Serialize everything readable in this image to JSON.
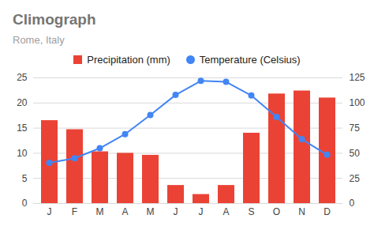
{
  "chart_data": {
    "type": "bar",
    "title": "Climograph",
    "subtitle": "Rome, Italy",
    "categories": [
      "J",
      "F",
      "M",
      "A",
      "M",
      "J",
      "J",
      "A",
      "S",
      "O",
      "N",
      "D"
    ],
    "series": [
      {
        "name": "Precipitation (mm)",
        "type": "bar",
        "axis": "y2",
        "color": "#ea4335",
        "values": [
          82.5,
          73.5,
          51.5,
          50,
          48,
          18,
          9,
          18,
          70,
          109,
          112,
          105
        ]
      },
      {
        "name": "Temperature (Celsius)",
        "type": "line",
        "marker": "circle",
        "color": "#4285f4",
        "values": [
          8.1,
          9,
          11,
          13.8,
          17.6,
          21.6,
          24.4,
          24.2,
          21.5,
          17.2,
          12.8,
          9.7
        ]
      }
    ],
    "ylim": [
      0,
      25
    ],
    "yticks": [
      0,
      5,
      10,
      15,
      20,
      25
    ],
    "y2lim": [
      0,
      125
    ],
    "y2ticks": [
      0,
      25,
      50,
      75,
      100,
      125
    ],
    "grid": true,
    "legend": "top"
  }
}
